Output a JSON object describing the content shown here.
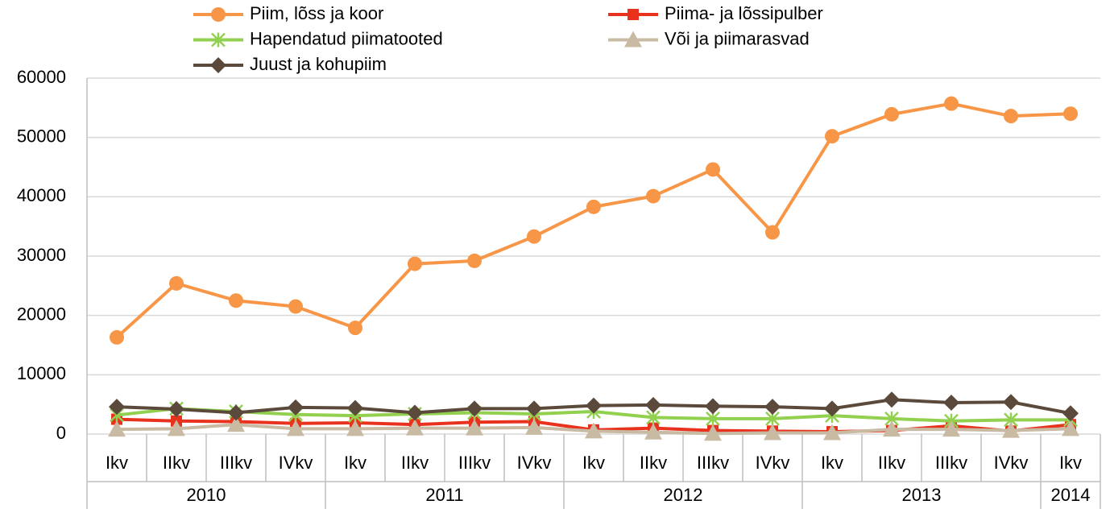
{
  "chart_data": {
    "type": "line",
    "categories": [
      "Ikv",
      "IIkv",
      "IIIkv",
      "IVkv",
      "Ikv",
      "IIkv",
      "IIIkv",
      "IVkv",
      "Ikv",
      "IIkv",
      "IIIkv",
      "IVkv",
      "Ikv",
      "IIkv",
      "IIIkv",
      "IVkv",
      "Ikv"
    ],
    "category_groups": [
      {
        "name": "2010",
        "size": 4
      },
      {
        "name": "2011",
        "size": 4
      },
      {
        "name": "2012",
        "size": 4
      },
      {
        "name": "2013",
        "size": 4
      },
      {
        "name": "2014",
        "size": 1
      }
    ],
    "ylim": [
      0,
      60000
    ],
    "yticks": [
      0,
      10000,
      20000,
      30000,
      40000,
      50000,
      60000
    ],
    "grid": true,
    "legend": "top",
    "series": [
      {
        "name": "Piim, lõss ja koor",
        "color": "#f79646",
        "marker": "circle",
        "values": [
          16300,
          25400,
          22500,
          21500,
          17900,
          28700,
          29200,
          33300,
          38300,
          40100,
          44600,
          34000,
          50200,
          53900,
          55700,
          53600,
          54000
        ]
      },
      {
        "name": "Piima- ja lõssipulber",
        "color": "#e8321e",
        "marker": "square",
        "values": [
          2500,
          2200,
          2100,
          1800,
          1900,
          1600,
          2000,
          2100,
          700,
          1000,
          600,
          500,
          400,
          600,
          1400,
          500,
          1600
        ]
      },
      {
        "name": "Hapendatud piimatooted",
        "color": "#92d050",
        "marker": "star",
        "values": [
          3200,
          4300,
          3800,
          3300,
          3100,
          3400,
          3600,
          3400,
          3800,
          2800,
          2600,
          2600,
          3100,
          2600,
          2200,
          2400,
          2400
        ]
      },
      {
        "name": "Või ja piimarasvad",
        "color": "#c9bba3",
        "marker": "triangle",
        "values": [
          800,
          900,
          1600,
          900,
          900,
          1000,
          1000,
          1100,
          500,
          300,
          100,
          200,
          200,
          800,
          800,
          600,
          900
        ]
      },
      {
        "name": "Juust ja kohupiim",
        "color": "#5b4a3b",
        "marker": "diamond",
        "values": [
          4600,
          4200,
          3600,
          4500,
          4400,
          3600,
          4300,
          4300,
          4800,
          4900,
          4700,
          4600,
          4300,
          5800,
          5300,
          5400,
          3500
        ]
      }
    ]
  }
}
